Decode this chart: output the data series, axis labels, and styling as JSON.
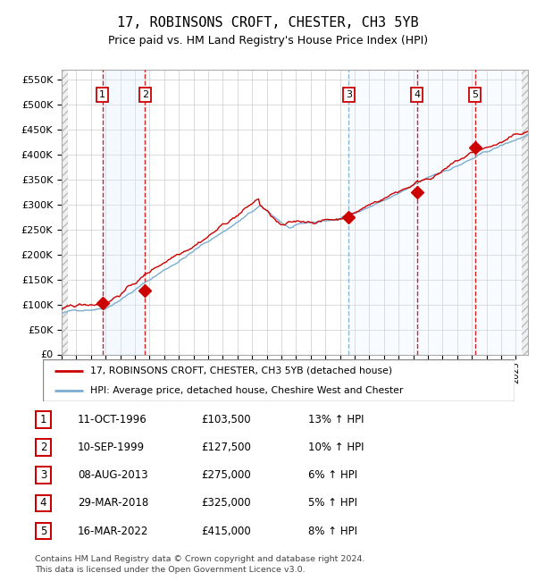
{
  "title": "17, ROBINSONS CROFT, CHESTER, CH3 5YB",
  "subtitle": "Price paid vs. HM Land Registry's House Price Index (HPI)",
  "ylim": [
    0,
    570000
  ],
  "yticks": [
    0,
    50000,
    100000,
    150000,
    200000,
    250000,
    300000,
    350000,
    400000,
    450000,
    500000,
    550000
  ],
  "ytick_labels": [
    "£0",
    "£50K",
    "£100K",
    "£150K",
    "£200K",
    "£250K",
    "£300K",
    "£350K",
    "£400K",
    "£450K",
    "£500K",
    "£550K"
  ],
  "xlim_start": 1994.0,
  "xlim_end": 2025.83,
  "hpi_color": "#7aadcf",
  "price_color": "#cc0000",
  "sale_marker_color": "#cc0000",
  "background_color": "#ffffff",
  "grid_color": "#cccccc",
  "sale_dates_x": [
    1996.78,
    1999.69,
    2013.6,
    2018.25,
    2022.21
  ],
  "sale_prices": [
    103500,
    127500,
    275000,
    325000,
    415000
  ],
  "sale_labels": [
    "1",
    "2",
    "3",
    "4",
    "5"
  ],
  "shade_color": "#ddeeff",
  "shade_pairs": [
    [
      1996.78,
      1999.69
    ],
    [
      2013.6,
      2018.25
    ],
    [
      2018.25,
      2022.21
    ],
    [
      2022.21,
      2025.83
    ]
  ],
  "shade_alphas": [
    0.35,
    0.18,
    0.18,
    0.18
  ],
  "vline_is_blue": [
    false,
    false,
    true,
    false,
    false
  ],
  "title_fontsize": 11,
  "subtitle_fontsize": 9,
  "tick_fontsize": 8,
  "legend_label_red": "17, ROBINSONS CROFT, CHESTER, CH3 5YB (detached house)",
  "legend_label_blue": "HPI: Average price, detached house, Cheshire West and Chester",
  "table_data": [
    [
      "1",
      "11-OCT-1996",
      "£103,500",
      "13% ↑ HPI"
    ],
    [
      "2",
      "10-SEP-1999",
      "£127,500",
      "10% ↑ HPI"
    ],
    [
      "3",
      "08-AUG-2013",
      "£275,000",
      "6% ↑ HPI"
    ],
    [
      "4",
      "29-MAR-2018",
      "£325,000",
      "5% ↑ HPI"
    ],
    [
      "5",
      "16-MAR-2022",
      "£415,000",
      "8% ↑ HPI"
    ]
  ],
  "footer": "Contains HM Land Registry data © Crown copyright and database right 2024.\nThis data is licensed under the Open Government Licence v3.0."
}
